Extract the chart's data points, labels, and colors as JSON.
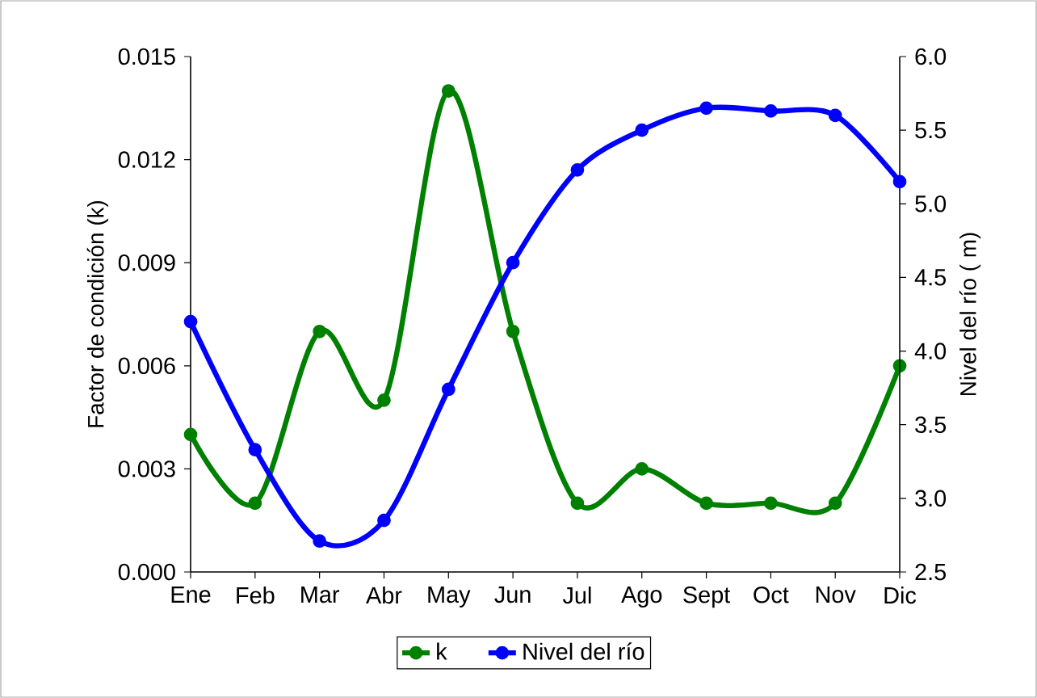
{
  "chart_data": {
    "type": "line",
    "categories": [
      "Ene",
      "Feb",
      "Mar",
      "Abr",
      "May",
      "Jun",
      "Jul",
      "Ago",
      "Sept",
      "Oct",
      "Nov",
      "Dic"
    ],
    "ylabel": "Factor de condición (k)",
    "y2label": "Nivel del río ( m)",
    "ylim": [
      0,
      0.015
    ],
    "yticks": [
      {
        "value": 0,
        "label": "0.000"
      },
      0.003,
      0.006,
      0.009,
      0.012,
      0.015
    ],
    "y2lim": [
      2.5,
      6.0
    ],
    "y2ticks": [
      2.5,
      {
        "value": 3,
        "label": "3.0"
      },
      3.5,
      {
        "value": 4,
        "label": "4.0"
      },
      4.5,
      {
        "value": 5,
        "label": "5.0"
      },
      5.5,
      {
        "value": 6,
        "label": "6.0"
      }
    ],
    "legend": "bottom",
    "marker": "circle",
    "line_style": "solid",
    "series": [
      {
        "name": "k",
        "color": "#008000",
        "values": [
          0.004,
          0.002,
          0.007,
          0.005,
          0.014,
          0.007,
          0.002,
          0.003,
          0.002,
          0.002,
          0.002,
          0.006
        ]
      },
      {
        "name": "Nivel del río",
        "color": "#0000ff",
        "axis": "y2",
        "values": [
          4.2,
          3.33,
          2.71,
          2.85,
          3.74,
          4.6,
          5.23,
          5.5,
          5.65,
          5.63,
          5.6,
          5.15
        ]
      }
    ]
  }
}
